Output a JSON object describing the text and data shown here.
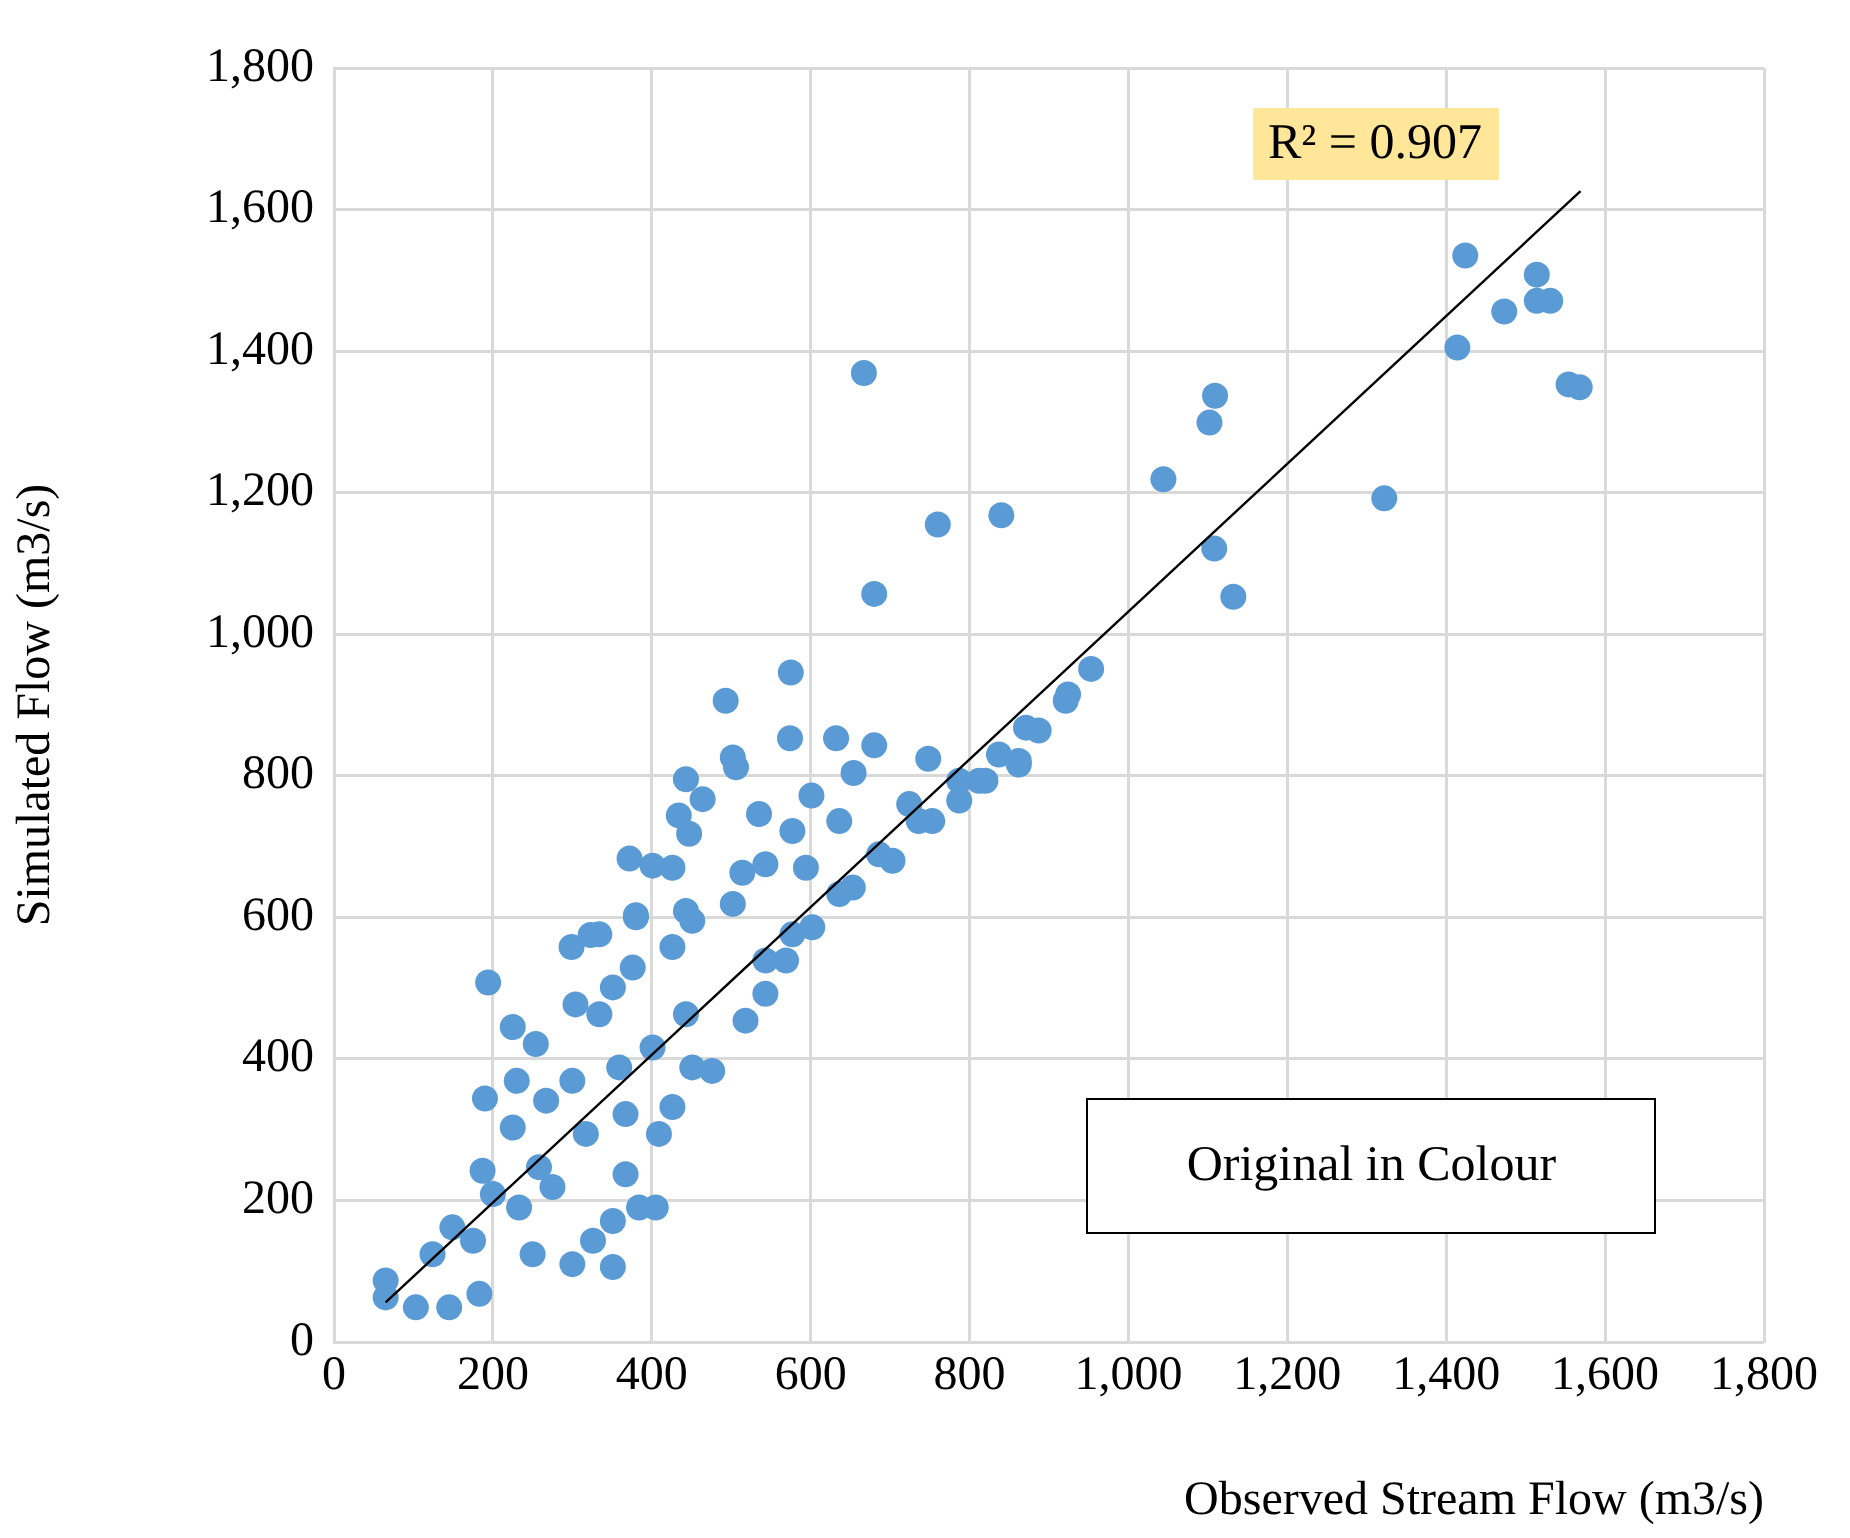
{
  "chart_data": {
    "type": "scatter",
    "xlabel": "Observed Stream Flow (m3/s)",
    "ylabel": "Simulated Flow (m3/s)",
    "xlim": [
      0,
      1800
    ],
    "ylim": [
      0,
      1800
    ],
    "xticks": [
      0,
      200,
      400,
      600,
      800,
      {
        "value": 1000,
        "label": "1,000"
      },
      {
        "value": 1200,
        "label": "1,200"
      },
      {
        "value": 1400,
        "label": "1,400"
      },
      {
        "value": 1600,
        "label": "1,600"
      },
      {
        "value": 1800,
        "label": "1,800"
      }
    ],
    "yticks": [
      0,
      200,
      400,
      600,
      800,
      {
        "value": 1000,
        "label": "1,000"
      },
      {
        "value": 1200,
        "label": "1,200"
      },
      {
        "value": 1400,
        "label": "1,400"
      },
      {
        "value": 1600,
        "label": "1,600"
      },
      {
        "value": 1800,
        "label": "1,800"
      }
    ],
    "grid": true,
    "annotations": [
      "R² = 0.907",
      "Original in Colour"
    ],
    "series": [
      {
        "type": "scatter",
        "color": "#5b9bd5",
        "marker": "circle",
        "x": [
          1424,
          1514,
          1514,
          1531,
          1473,
          1414,
          1554,
          1568,
          1109,
          1102,
          1044,
          1322,
          1108,
          1132,
          667,
          760,
          840,
          680,
          575,
          493,
          953,
          924,
          574,
          632,
          680,
          748,
          502,
          506,
          654,
          443,
          464,
          601,
          535,
          434,
          447,
          577,
          636,
          724,
          372,
          401,
          426,
          514,
          543,
          594,
          502,
          443,
          380,
          334,
          653,
          871,
          837,
          787,
          736,
          686,
          636,
          577,
          543,
          194,
          225,
          190,
          230,
          299,
          323,
          380,
          304,
          254,
          225,
          187,
          250,
          300,
          351,
          384,
          405,
          326,
          351,
          183,
          145,
          103,
          65,
          65,
          124,
          149,
          200,
          258,
          317,
          367,
          367,
          409,
          426,
          451,
          443,
          401,
          359,
          300,
          267,
          334,
          376,
          426,
          451,
          351,
          275,
          233,
          175,
          476,
          518,
          543,
          569,
          602,
          703,
          753,
          820,
          862,
          921,
          887,
          862,
          812,
          787
        ],
        "values": [
          1535,
          1508,
          1471,
          1471,
          1456,
          1405,
          1353,
          1349,
          1337,
          1299,
          1219,
          1192,
          1121,
          1053,
          1369,
          1155,
          1168,
          1057,
          946,
          906,
          951,
          915,
          853,
          853,
          843,
          824,
          826,
          812,
          804,
          795,
          767,
          772,
          746,
          744,
          718,
          722,
          736,
          760,
          683,
          673,
          670,
          663,
          675,
          670,
          619,
          609,
          600,
          576,
          642,
          868,
          830,
          793,
          736,
          689,
          633,
          576,
          539,
          508,
          445,
          344,
          369,
          558,
          575,
          603,
          477,
          421,
          303,
          242,
          124,
          110,
          106,
          190,
          190,
          143,
          171,
          68,
          49,
          49,
          87,
          63,
          124,
          162,
          209,
          247,
          294,
          322,
          237,
          294,
          332,
          388,
          463,
          416,
          388,
          369,
          341,
          463,
          529,
          558,
          595,
          501,
          219,
          190,
          143,
          383,
          454,
          492,
          539,
          586,
          680,
          736,
          793,
          821,
          906,
          864,
          816,
          793,
          765
        ]
      },
      {
        "type": "line",
        "color": "#000000",
        "marker": "none",
        "x": [
          65,
          1569
        ],
        "values": [
          56,
          1626
        ]
      }
    ]
  }
}
